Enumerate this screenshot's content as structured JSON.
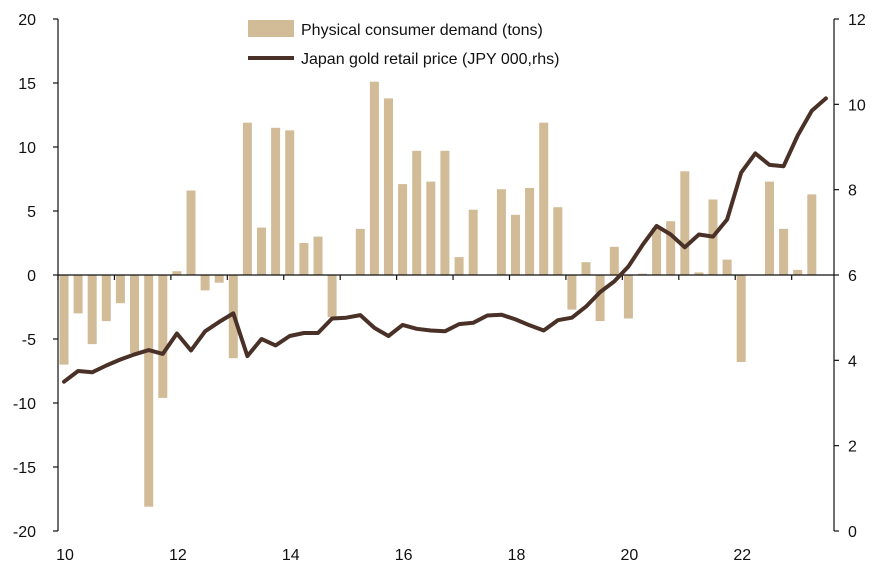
{
  "chart_data": {
    "type": "bar",
    "title": "",
    "xlabel": "",
    "ylabel": "",
    "x_ticks": [
      "10",
      "12",
      "14",
      "16",
      "18",
      "20",
      "22"
    ],
    "xlim": [
      2010,
      2023.75
    ],
    "ylim_left": [
      -20,
      20
    ],
    "ylim_right": [
      0,
      12
    ],
    "left_ticks": [
      "20",
      "15",
      "10",
      "5",
      "0",
      "-5",
      "-10",
      "-15",
      "-20"
    ],
    "right_ticks": [
      "12",
      "10",
      "8",
      "6",
      "4",
      "2",
      "0"
    ],
    "legend_position": "top-center",
    "grid": false,
    "series": [
      {
        "name": "Physical consumer demand (tons)",
        "type": "bar",
        "axis": "left",
        "color": "#d2bc98",
        "x": [
          2010.0,
          2010.25,
          2010.5,
          2010.75,
          2011.0,
          2011.25,
          2011.5,
          2011.75,
          2012.0,
          2012.25,
          2012.5,
          2012.75,
          2013.0,
          2013.25,
          2013.5,
          2013.75,
          2014.0,
          2014.25,
          2014.5,
          2014.75,
          2015.0,
          2015.25,
          2015.5,
          2015.75,
          2016.0,
          2016.25,
          2016.5,
          2016.75,
          2017.0,
          2017.25,
          2017.5,
          2017.75,
          2018.0,
          2018.25,
          2018.5,
          2018.75,
          2019.0,
          2019.25,
          2019.5,
          2019.75,
          2020.0,
          2020.25,
          2020.5,
          2020.75,
          2021.0,
          2021.25,
          2021.5,
          2021.75,
          2022.0,
          2022.25,
          2022.5,
          2022.75,
          2023.0,
          2023.25
        ],
        "values": [
          -7.0,
          -3.0,
          -5.4,
          -3.6,
          -2.2,
          -6.1,
          -18.1,
          -9.6,
          0.3,
          6.6,
          -1.2,
          -0.6,
          -6.5,
          11.9,
          3.7,
          11.5,
          11.3,
          2.5,
          3.0,
          -3.3,
          0.0,
          3.6,
          15.1,
          13.8,
          7.1,
          9.7,
          7.3,
          9.7,
          1.4,
          5.1,
          0.0,
          6.7,
          4.7,
          6.8,
          11.9,
          5.3,
          -2.7,
          1.0,
          -3.6,
          2.2,
          -3.4,
          0.1,
          3.7,
          4.2,
          8.1,
          0.2,
          5.9,
          1.2,
          -6.8,
          0.0,
          7.3,
          3.6,
          0.4,
          6.3
        ]
      },
      {
        "name": "Japan gold retail price (JPY 000,rhs)",
        "type": "line",
        "axis": "right",
        "color": "#4a3127",
        "x": [
          2010.0,
          2010.25,
          2010.5,
          2010.75,
          2011.0,
          2011.25,
          2011.5,
          2011.75,
          2012.0,
          2012.25,
          2012.5,
          2012.75,
          2013.0,
          2013.25,
          2013.5,
          2013.75,
          2014.0,
          2014.25,
          2014.5,
          2014.75,
          2015.0,
          2015.25,
          2015.5,
          2015.75,
          2016.0,
          2016.25,
          2016.5,
          2016.75,
          2017.0,
          2017.25,
          2017.5,
          2017.75,
          2018.0,
          2018.25,
          2018.5,
          2018.75,
          2019.0,
          2019.25,
          2019.5,
          2019.75,
          2020.0,
          2020.25,
          2020.5,
          2020.75,
          2021.0,
          2021.25,
          2021.5,
          2021.75,
          2022.0,
          2022.25,
          2022.5,
          2022.75,
          2023.0,
          2023.25,
          2023.5
        ],
        "values": [
          3.5,
          3.75,
          3.72,
          3.88,
          4.02,
          4.14,
          4.24,
          4.15,
          4.63,
          4.23,
          4.68,
          4.9,
          5.1,
          4.1,
          4.5,
          4.35,
          4.57,
          4.64,
          4.64,
          4.98,
          5.0,
          5.06,
          4.76,
          4.57,
          4.83,
          4.74,
          4.7,
          4.68,
          4.85,
          4.88,
          5.05,
          5.07,
          4.96,
          4.82,
          4.7,
          4.94,
          5.0,
          5.26,
          5.6,
          5.85,
          6.2,
          6.7,
          7.15,
          6.95,
          6.65,
          6.95,
          6.9,
          7.3,
          8.4,
          8.85,
          8.58,
          8.55,
          9.27,
          9.85,
          10.14
        ]
      }
    ]
  }
}
